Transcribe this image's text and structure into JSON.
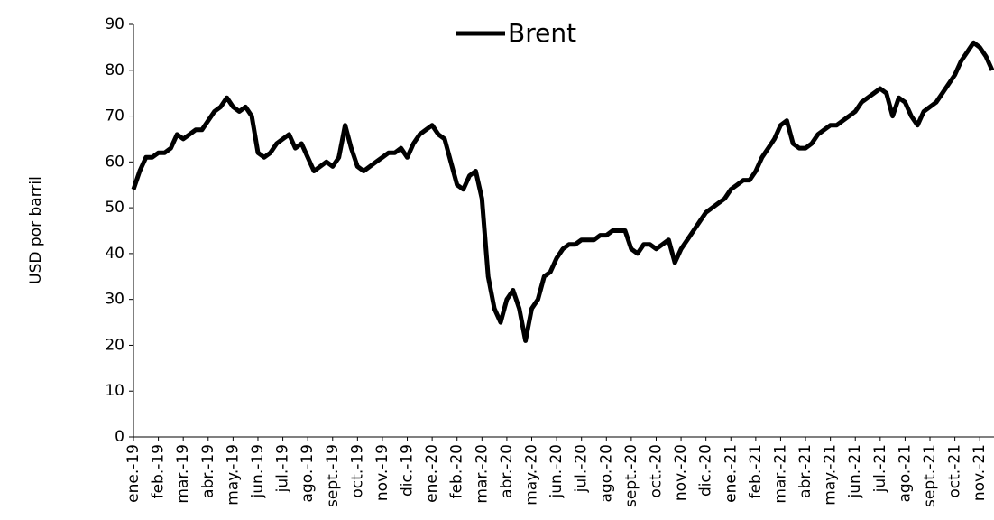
{
  "chart_data": {
    "type": "line",
    "y_label": "USD por barril",
    "x": [
      "ene.-19",
      null,
      null,
      null,
      "feb.-19",
      null,
      null,
      null,
      "mar.-19",
      null,
      null,
      null,
      "abr.-19",
      null,
      null,
      null,
      "may.-19",
      null,
      null,
      null,
      "jun.-19",
      null,
      null,
      null,
      "jul.-19",
      null,
      null,
      null,
      "ago.-19",
      null,
      null,
      null,
      "sept.-19",
      null,
      null,
      null,
      "oct.-19",
      null,
      null,
      null,
      "nov.-19",
      null,
      null,
      null,
      "dic.-19",
      null,
      null,
      null,
      "ene.-20",
      null,
      null,
      null,
      "feb.-20",
      null,
      null,
      null,
      "mar.-20",
      null,
      null,
      null,
      "abr.-20",
      null,
      null,
      null,
      "may.-20",
      null,
      null,
      null,
      "jun.-20",
      null,
      null,
      null,
      "jul.-20",
      null,
      null,
      null,
      "ago.-20",
      null,
      null,
      null,
      "sept.-20",
      null,
      null,
      null,
      "oct.-20",
      null,
      null,
      null,
      "nov.-20",
      null,
      null,
      null,
      "dic.-20",
      null,
      null,
      null,
      "ene.-21",
      null,
      null,
      null,
      "feb.-21",
      null,
      null,
      null,
      "mar.-21",
      null,
      null,
      null,
      "abr.-21",
      null,
      null,
      null,
      "may.-21",
      null,
      null,
      null,
      "jun.-21",
      null,
      null,
      null,
      "jul.-21",
      null,
      null,
      null,
      "ago.-21",
      null,
      null,
      null,
      "sept.-21",
      null,
      null,
      null,
      "oct.-21",
      null,
      null,
      null,
      "nov.-21",
      null,
      null
    ],
    "series": [
      {
        "name": "Brent",
        "color": "#000000",
        "values": [
          54,
          58,
          61,
          61,
          62,
          62,
          63,
          66,
          65,
          66,
          67,
          67,
          69,
          71,
          72,
          74,
          72,
          71,
          72,
          70,
          62,
          61,
          62,
          64,
          65,
          66,
          63,
          64,
          61,
          58,
          59,
          60,
          59,
          61,
          68,
          63,
          59,
          58,
          59,
          60,
          61,
          62,
          62,
          63,
          61,
          64,
          66,
          67,
          68,
          66,
          65,
          60,
          55,
          54,
          57,
          58,
          52,
          35,
          28,
          25,
          30,
          32,
          28,
          21,
          28,
          30,
          35,
          36,
          39,
          41,
          42,
          42,
          43,
          43,
          43,
          44,
          44,
          45,
          45,
          45,
          41,
          40,
          42,
          42,
          41,
          42,
          43,
          38,
          41,
          43,
          45,
          47,
          49,
          50,
          51,
          52,
          54,
          55,
          56,
          56,
          58,
          61,
          63,
          65,
          68,
          69,
          64,
          63,
          63,
          64,
          66,
          67,
          68,
          68,
          69,
          70,
          71,
          73,
          74,
          75,
          76,
          75,
          70,
          74,
          73,
          70,
          68,
          71,
          72,
          73,
          75,
          77,
          79,
          82,
          84,
          86,
          85,
          83,
          80
        ]
      }
    ],
    "ylim": [
      0,
      90
    ],
    "yticks": [
      0,
      10,
      20,
      30,
      40,
      50,
      60,
      70,
      80,
      90
    ],
    "legend": "top"
  }
}
